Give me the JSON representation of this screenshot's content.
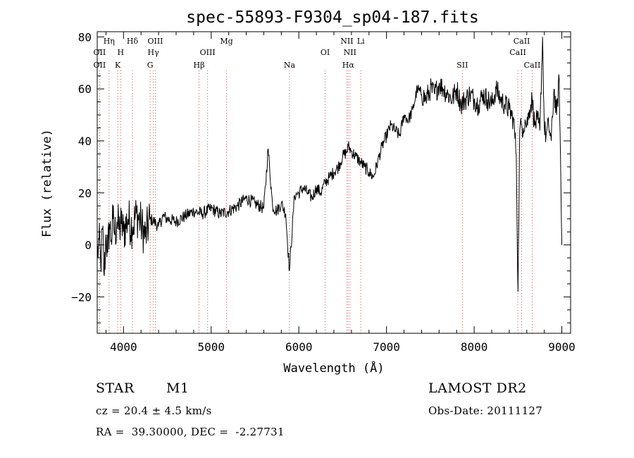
{
  "chart_data": {
    "type": "line",
    "title": "spec-55893-F9304_sp04-187.fits",
    "xlabel": "Wavelength (Å)",
    "ylabel": "Flux (relative)",
    "xlim": [
      3700,
      9100
    ],
    "ylim": [
      -34,
      82
    ],
    "xticks": [
      4000,
      5000,
      6000,
      7000,
      8000,
      9000
    ],
    "yticks": [
      -20,
      0,
      20,
      40,
      60,
      80
    ],
    "grid": false,
    "line_color": "#000000",
    "marker_color": "#d05050",
    "series": [
      {
        "x": [
          3700,
          3720,
          3740,
          3760,
          3780,
          3800,
          3820,
          3840,
          3860,
          3880,
          3900,
          3925,
          3950,
          3975,
          4000,
          4050,
          4100,
          4150,
          4200,
          4250,
          4300,
          4350,
          4400,
          4450,
          4500,
          4600,
          4700,
          4800,
          4900,
          5000,
          5100,
          5200,
          5300,
          5400,
          5500,
          5600,
          5650,
          5700,
          5750,
          5800,
          5850,
          5893,
          5950,
          6000,
          6050,
          6100,
          6150,
          6200,
          6250,
          6300,
          6350,
          6400,
          6450,
          6500,
          6550,
          6563,
          6600,
          6650,
          6700,
          6750,
          6800,
          6850,
          6900,
          6950,
          7000,
          7050,
          7100,
          7150,
          7200,
          7250,
          7300,
          7350,
          7400,
          7450,
          7500,
          7550,
          7600,
          7650,
          7700,
          7750,
          7800,
          7850,
          7900,
          7950,
          8000,
          8050,
          8100,
          8150,
          8200,
          8250,
          8300,
          8350,
          8400,
          8450,
          8480,
          8500,
          8520,
          8542,
          8560,
          8580,
          8600,
          8630,
          8662,
          8690,
          8720,
          8750,
          8780,
          8800,
          8820,
          8850,
          8880,
          8910,
          8940,
          8970,
          9000
        ],
        "y": [
          -5,
          2,
          -8,
          6,
          -12,
          4,
          -3,
          8,
          2,
          10,
          4,
          9,
          6,
          8,
          5,
          10,
          7,
          12,
          8,
          3,
          10,
          9,
          7,
          11,
          10,
          9,
          11,
          13,
          12,
          14,
          12,
          13,
          15,
          18,
          16,
          14,
          37,
          15,
          13,
          16,
          12,
          -10,
          19,
          20,
          22,
          20,
          18,
          22,
          20,
          24,
          26,
          28,
          30,
          34,
          36,
          38,
          36,
          34,
          32,
          30,
          28,
          26,
          32,
          38,
          42,
          46,
          44,
          42,
          50,
          48,
          52,
          60,
          58,
          56,
          60,
          58,
          62,
          60,
          58,
          56,
          60,
          54,
          56,
          58,
          56,
          54,
          58,
          56,
          54,
          60,
          56,
          54,
          52,
          48,
          35,
          -18,
          44,
          46,
          45,
          48,
          46,
          52,
          56,
          46,
          48,
          44,
          80,
          45,
          42,
          46,
          40,
          60,
          50,
          64,
          0
        ]
      }
    ],
    "line_markers": [
      {
        "x": 3727,
        "label": "OII",
        "row": 3
      },
      {
        "x": 3727,
        "label": "OII",
        "row": 2
      },
      {
        "x": 3835,
        "label": "Hη",
        "row": 1
      },
      {
        "x": 3934,
        "label": "K",
        "row": 3
      },
      {
        "x": 3968,
        "label": "H",
        "row": 2
      },
      {
        "x": 4102,
        "label": "Hδ",
        "row": 1
      },
      {
        "x": 4304,
        "label": "G",
        "row": 3
      },
      {
        "x": 4340,
        "label": "Hγ",
        "row": 2
      },
      {
        "x": 4363,
        "label": "OIII",
        "row": 1
      },
      {
        "x": 4861,
        "label": "Hβ",
        "row": 3
      },
      {
        "x": 4959,
        "label": "OIII",
        "row": 2
      },
      {
        "x": 5175,
        "label": "Mg",
        "row": 1
      },
      {
        "x": 5893,
        "label": "Na",
        "row": 3
      },
      {
        "x": 6300,
        "label": "OI",
        "row": 2
      },
      {
        "x": 6548,
        "label": "NII",
        "row": 1
      },
      {
        "x": 6563,
        "label": "Hα",
        "row": 3
      },
      {
        "x": 6583,
        "label": "NII",
        "row": 2
      },
      {
        "x": 6707,
        "label": "Li",
        "row": 1
      },
      {
        "x": 7865,
        "label": "SII",
        "row": 3
      },
      {
        "x": 8498,
        "label": "CaII",
        "row": 2
      },
      {
        "x": 8542,
        "label": "CaII",
        "row": 1
      },
      {
        "x": 8662,
        "label": "CaII",
        "row": 3
      }
    ]
  },
  "info": {
    "object_class": "STAR",
    "subclass": "M1",
    "survey": "LAMOST DR2",
    "redshift": "cz = 20.4 ± 4.5 km/s",
    "obs_date": "Obs-Date: 20111127",
    "coordinates": "RA =  39.30000, DEC =  -2.27731"
  }
}
